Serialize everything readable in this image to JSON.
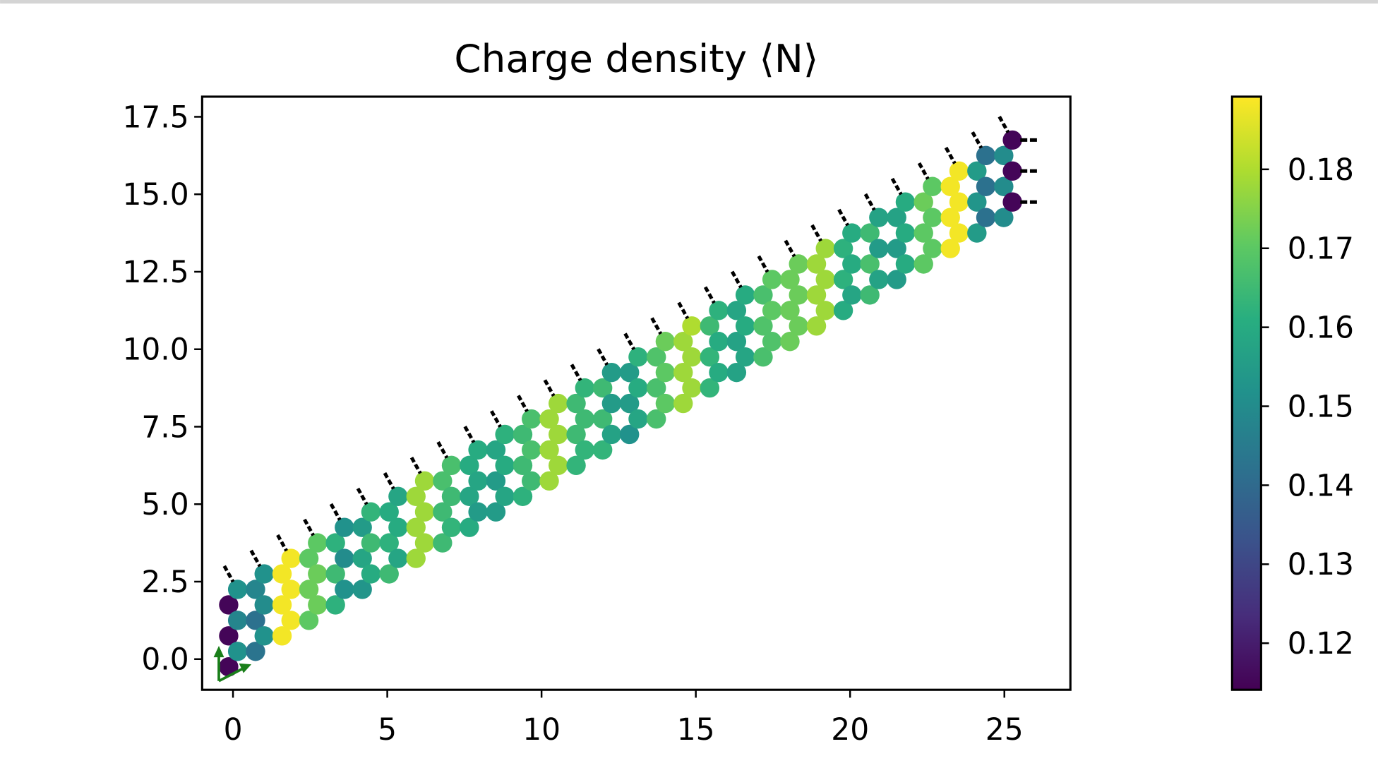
{
  "chart_data": {
    "type": "scatter",
    "title": "Charge density ⟨N⟩",
    "xlim": [
      -1.0,
      27.14
    ],
    "ylim": [
      -0.99,
      18.15
    ],
    "xticks": [
      0,
      5,
      10,
      15,
      20,
      25
    ],
    "yticks": [
      {
        "value": 0,
        "label": "0.0"
      },
      2.5,
      {
        "value": 5,
        "label": "5.0"
      },
      7.5,
      {
        "value": 10,
        "label": "10.0"
      },
      12.5,
      {
        "value": 15,
        "label": "15.0"
      },
      17.5
    ],
    "colormap": "viridis",
    "clim": [
      0.1141,
      0.1892
    ],
    "cticks": [
      0.12,
      0.13,
      0.14,
      0.15,
      0.16,
      0.17,
      0.18
    ],
    "series": [
      {
        "x": [
          -0.14,
          -0.14,
          -0.14,
          0.15,
          0.15,
          0.15,
          0.73,
          0.73,
          0.73,
          1.01,
          1.01,
          1.01,
          1.59,
          1.59,
          1.59,
          1.88,
          1.88,
          1.88,
          2.46,
          2.46,
          2.46,
          2.74,
          2.74,
          2.74,
          3.32,
          3.32,
          3.32,
          3.61,
          3.61,
          3.61,
          4.19,
          4.19,
          4.19,
          4.47,
          4.47,
          4.47,
          5.06,
          5.06,
          5.06,
          5.35,
          5.35,
          5.35,
          5.93,
          5.93,
          5.93,
          6.21,
          6.21,
          6.21,
          6.79,
          6.79,
          6.79,
          7.08,
          7.08,
          7.08,
          7.66,
          7.66,
          7.66,
          7.94,
          7.94,
          7.94,
          8.52,
          8.52,
          8.52,
          8.81,
          8.81,
          8.81,
          9.39,
          9.39,
          9.39,
          9.67,
          9.67,
          9.67,
          10.25,
          10.25,
          10.25,
          10.54,
          10.54,
          10.54,
          11.12,
          11.12,
          11.12,
          11.4,
          11.4,
          11.4,
          11.98,
          11.98,
          11.98,
          12.27,
          12.27,
          12.27,
          12.85,
          12.85,
          12.85,
          13.13,
          13.13,
          13.13,
          13.72,
          13.72,
          13.72,
          14.01,
          14.01,
          14.01,
          14.59,
          14.59,
          14.59,
          14.87,
          14.87,
          14.87,
          15.45,
          15.45,
          15.45,
          15.74,
          15.74,
          15.74,
          16.32,
          16.32,
          16.32,
          16.6,
          16.6,
          16.6,
          17.18,
          17.18,
          17.18,
          17.47,
          17.47,
          17.47,
          18.05,
          18.05,
          18.05,
          18.33,
          18.33,
          18.33,
          18.91,
          18.91,
          18.91,
          19.2,
          19.2,
          19.2,
          19.78,
          19.78,
          19.78,
          20.06,
          20.06,
          20.06,
          20.64,
          20.64,
          20.64,
          20.93,
          20.93,
          20.93,
          21.51,
          21.51,
          21.51,
          21.79,
          21.79,
          21.79,
          22.38,
          22.38,
          22.38,
          22.67,
          22.67,
          22.67,
          23.25,
          23.25,
          23.25,
          23.53,
          23.53,
          23.53,
          24.11,
          24.11,
          24.11,
          24.4,
          24.4,
          24.4,
          24.98,
          24.98,
          24.98,
          25.26,
          25.26,
          25.26
        ],
        "y": [
          -0.25,
          0.75,
          1.75,
          0.25,
          1.25,
          2.25,
          0.25,
          1.25,
          2.25,
          0.75,
          1.75,
          2.75,
          0.75,
          1.75,
          2.75,
          1.25,
          2.25,
          3.25,
          1.25,
          2.25,
          3.25,
          1.75,
          2.75,
          3.75,
          1.75,
          2.75,
          3.75,
          2.25,
          3.25,
          4.25,
          2.25,
          3.25,
          4.25,
          2.75,
          3.75,
          4.75,
          2.75,
          3.75,
          4.75,
          3.25,
          4.25,
          5.25,
          3.25,
          4.25,
          5.25,
          3.75,
          4.75,
          5.75,
          3.75,
          4.75,
          5.75,
          4.25,
          5.25,
          6.25,
          4.25,
          5.25,
          6.25,
          4.75,
          5.75,
          6.75,
          4.75,
          5.75,
          6.75,
          5.25,
          6.25,
          7.25,
          5.25,
          6.25,
          7.25,
          5.75,
          6.75,
          7.75,
          5.75,
          6.75,
          7.75,
          6.25,
          7.25,
          8.25,
          6.25,
          7.25,
          8.25,
          6.75,
          7.75,
          8.75,
          6.75,
          7.75,
          8.75,
          7.25,
          8.25,
          9.25,
          7.25,
          8.25,
          9.25,
          7.75,
          8.75,
          9.75,
          7.75,
          8.75,
          9.75,
          8.25,
          9.25,
          10.25,
          8.25,
          9.25,
          10.25,
          8.75,
          9.75,
          10.75,
          8.75,
          9.75,
          10.75,
          9.25,
          10.25,
          11.25,
          9.25,
          10.25,
          11.25,
          9.75,
          10.75,
          11.75,
          9.75,
          10.75,
          11.75,
          10.25,
          11.25,
          12.25,
          10.25,
          11.25,
          12.25,
          10.75,
          11.75,
          12.75,
          10.75,
          11.75,
          12.75,
          11.25,
          12.25,
          13.25,
          11.25,
          12.25,
          13.25,
          11.75,
          12.75,
          13.75,
          11.75,
          12.75,
          13.75,
          12.25,
          13.25,
          14.25,
          12.25,
          13.25,
          14.25,
          12.75,
          13.75,
          14.75,
          12.75,
          13.75,
          14.75,
          13.25,
          14.25,
          15.25,
          13.25,
          14.25,
          15.25,
          13.75,
          14.75,
          15.75,
          13.75,
          14.75,
          15.75,
          14.25,
          15.25,
          16.25,
          14.25,
          15.25,
          16.25,
          14.75,
          15.75,
          16.75
        ],
        "values": [
          0.115,
          0.115,
          0.115,
          0.152,
          0.148,
          0.152,
          0.143,
          0.142,
          0.148,
          0.152,
          0.15,
          0.152,
          0.188,
          0.188,
          0.188,
          0.188,
          0.188,
          0.188,
          0.17,
          0.172,
          0.17,
          0.172,
          0.172,
          0.17,
          0.162,
          0.165,
          0.162,
          0.152,
          0.15,
          0.152,
          0.153,
          0.158,
          0.155,
          0.16,
          0.165,
          0.163,
          0.165,
          0.162,
          0.16,
          0.158,
          0.16,
          0.158,
          0.178,
          0.178,
          0.178,
          0.178,
          0.178,
          0.178,
          0.165,
          0.165,
          0.167,
          0.163,
          0.165,
          0.167,
          0.16,
          0.158,
          0.16,
          0.155,
          0.158,
          0.16,
          0.155,
          0.155,
          0.158,
          0.158,
          0.16,
          0.162,
          0.162,
          0.165,
          0.165,
          0.165,
          0.167,
          0.167,
          0.178,
          0.178,
          0.178,
          0.178,
          0.178,
          0.178,
          0.163,
          0.165,
          0.165,
          0.163,
          0.165,
          0.163,
          0.163,
          0.165,
          0.165,
          0.157,
          0.155,
          0.155,
          0.152,
          0.155,
          0.155,
          0.158,
          0.16,
          0.162,
          0.167,
          0.167,
          0.168,
          0.17,
          0.17,
          0.172,
          0.178,
          0.178,
          0.178,
          0.178,
          0.178,
          0.18,
          0.163,
          0.163,
          0.165,
          0.16,
          0.16,
          0.162,
          0.157,
          0.157,
          0.158,
          0.158,
          0.16,
          0.16,
          0.167,
          0.168,
          0.167,
          0.168,
          0.17,
          0.17,
          0.172,
          0.172,
          0.172,
          0.172,
          0.172,
          0.172,
          0.178,
          0.178,
          0.178,
          0.178,
          0.178,
          0.178,
          0.16,
          0.162,
          0.162,
          0.158,
          0.16,
          0.16,
          0.165,
          0.167,
          0.165,
          0.157,
          0.155,
          0.157,
          0.155,
          0.155,
          0.157,
          0.16,
          0.16,
          0.16,
          0.17,
          0.17,
          0.172,
          0.17,
          0.17,
          0.17,
          0.188,
          0.188,
          0.188,
          0.188,
          0.188,
          0.188,
          0.155,
          0.153,
          0.155,
          0.142,
          0.142,
          0.142,
          0.15,
          0.15,
          0.15,
          0.115,
          0.115,
          0.115
        ]
      },
      {
        "x": [
          -0.14,
          0.73,
          1.59,
          2.46,
          3.32,
          4.19,
          5.06,
          5.93,
          6.79,
          7.66,
          8.52,
          9.39,
          10.25,
          11.12,
          11.98,
          12.85,
          13.72,
          14.59,
          15.45,
          16.32,
          17.18,
          18.05,
          18.91,
          19.78,
          20.64,
          21.51,
          22.38,
          23.25,
          24.11,
          24.98
        ],
        "y": [
          2.75,
          3.25,
          3.75,
          4.25,
          4.75,
          5.25,
          5.75,
          6.25,
          6.75,
          7.25,
          7.75,
          8.25,
          8.75,
          9.25,
          9.75,
          10.25,
          10.75,
          11.25,
          11.75,
          12.25,
          12.75,
          13.25,
          13.75,
          14.25,
          14.75,
          15.25,
          15.75,
          16.25,
          16.75,
          17.25
        ],
        "color": "#000000",
        "marker": "dash-diagonal"
      },
      {
        "x": [
          25.8,
          25.8,
          25.8
        ],
        "y": [
          14.75,
          15.75,
          16.75
        ],
        "color": "#000000",
        "marker": "dash-horizontal"
      }
    ]
  }
}
